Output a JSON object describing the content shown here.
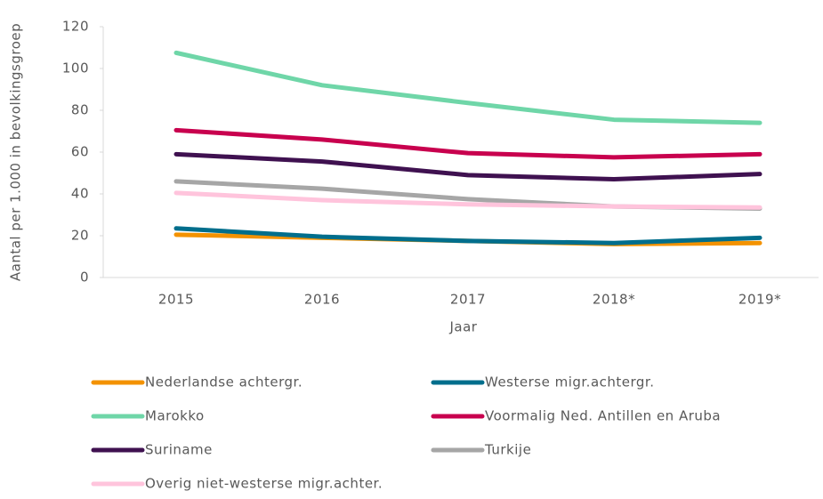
{
  "chart_data": {
    "type": "line",
    "x_label": "Jaar",
    "y_label": "Aantal per 1.000 in bevolkingsgroep",
    "categories": [
      "2015",
      "2016",
      "2017",
      "2018*",
      "2019*"
    ],
    "ylim": [
      0,
      120
    ],
    "yticks": [
      0,
      20,
      40,
      60,
      80,
      100,
      120
    ],
    "series": [
      {
        "name": "Nederlandse achtergr.",
        "color": "#f39200",
        "values": [
          20.5,
          19,
          17.5,
          16,
          16.5
        ]
      },
      {
        "name": "Westerse migr.achtergr.",
        "color": "#006e8c",
        "values": [
          23.5,
          19.5,
          17.5,
          16.5,
          19
        ]
      },
      {
        "name": "Marokko",
        "color": "#6fd6a8",
        "values": [
          107.5,
          92,
          83.5,
          75.5,
          74
        ]
      },
      {
        "name": "Voormalig Ned. Antillen en Aruba",
        "color": "#c8004e",
        "values": [
          70.5,
          66,
          59.5,
          57.5,
          59
        ]
      },
      {
        "name": "Suriname",
        "color": "#3f1150",
        "values": [
          59,
          55.5,
          49,
          47,
          49.5
        ]
      },
      {
        "name": "Turkije",
        "color": "#a6a6a6",
        "values": [
          46,
          42.5,
          37.5,
          34,
          33
        ]
      },
      {
        "name": "Overig niet-westerse migr.achter.",
        "color": "#ffc4dc",
        "values": [
          40.5,
          37,
          35,
          34,
          33.5
        ]
      }
    ]
  }
}
